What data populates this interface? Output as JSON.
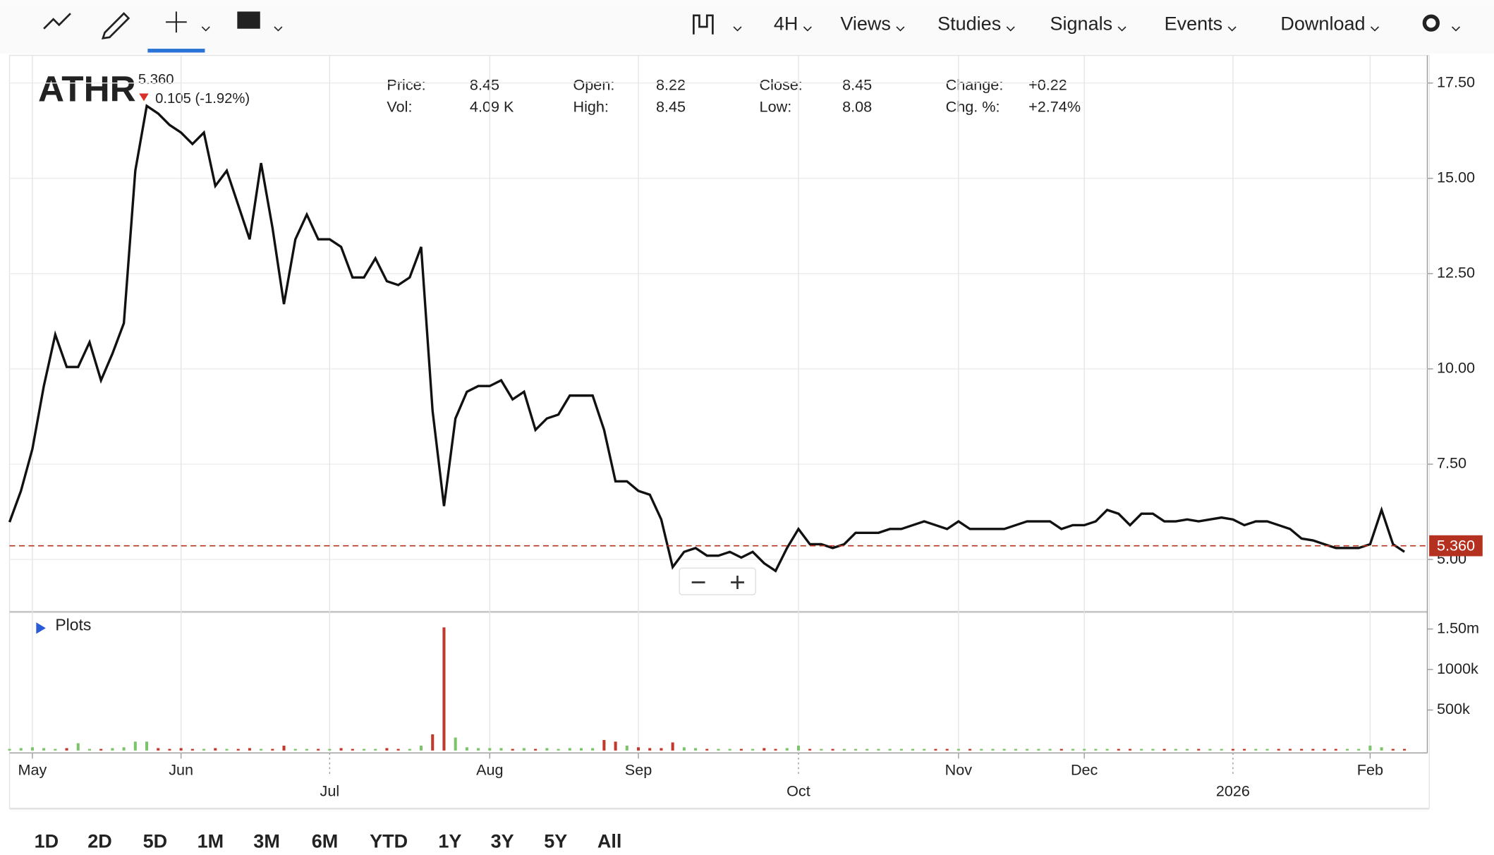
{
  "toolbar": {
    "items": [
      "4H",
      "Views",
      "Studies",
      "Signals",
      "Events",
      "Download"
    ]
  },
  "header": {
    "ticker": "ATHR",
    "last": "5.360",
    "change": "0.105 (-1.92%)",
    "stats": [
      {
        "label": "Price:",
        "value": "8.45"
      },
      {
        "label": "Vol:",
        "value": "4.09 K"
      },
      {
        "label": "Open:",
        "value": "8.22"
      },
      {
        "label": "High:",
        "value": "8.45"
      },
      {
        "label": "Close:",
        "value": "8.45"
      },
      {
        "label": "Low:",
        "value": "8.08"
      },
      {
        "label": "Change:",
        "value": "+0.22"
      },
      {
        "label": "Chg. %:",
        "value": "+2.74%"
      }
    ]
  },
  "plots_label": "Plots",
  "ranges": [
    "1D",
    "2D",
    "5D",
    "1M",
    "3M",
    "6M",
    "YTD",
    "1Y",
    "3Y",
    "5Y",
    "All"
  ],
  "chart_data": [
    {
      "type": "line",
      "color": "#111111",
      "grid": true,
      "categories": [
        null,
        null,
        "May",
        null,
        null,
        null,
        null,
        null,
        null,
        null,
        null,
        null,
        null,
        null,
        null,
        "Jun",
        null,
        null,
        null,
        null,
        null,
        null,
        null,
        null,
        null,
        null,
        null,
        null,
        "Jul",
        null,
        null,
        null,
        null,
        null,
        null,
        null,
        null,
        null,
        null,
        null,
        null,
        null,
        "Aug",
        null,
        null,
        null,
        null,
        null,
        null,
        null,
        null,
        null,
        null,
        null,
        null,
        "Sep",
        null,
        null,
        null,
        null,
        null,
        null,
        null,
        null,
        null,
        null,
        null,
        null,
        null,
        "Oct",
        null,
        null,
        null,
        null,
        null,
        null,
        null,
        null,
        null,
        null,
        null,
        null,
        null,
        "Nov",
        null,
        null,
        null,
        null,
        null,
        null,
        null,
        null,
        null,
        null,
        "Dec",
        null,
        null,
        null,
        null,
        null,
        null,
        null,
        null,
        null,
        null,
        null,
        null,
        "2026",
        null,
        null,
        null,
        null,
        null,
        null,
        null,
        null,
        null,
        null,
        null,
        "Feb",
        null,
        null,
        null
      ],
      "values": [
        5.98,
        6.8,
        7.9,
        9.55,
        10.9,
        10.05,
        10.05,
        10.7,
        9.7,
        10.4,
        11.2,
        15.2,
        16.9,
        16.7,
        16.4,
        16.2,
        15.9,
        16.2,
        14.8,
        15.2,
        14.3,
        13.4,
        15.4,
        13.7,
        11.7,
        13.4,
        14.05,
        13.4,
        13.4,
        13.2,
        12.4,
        12.4,
        12.9,
        12.3,
        12.2,
        12.4,
        13.2,
        8.9,
        6.4,
        8.7,
        9.4,
        9.55,
        9.55,
        9.7,
        9.2,
        9.4,
        8.4,
        8.7,
        8.8,
        9.3,
        9.3,
        9.3,
        8.4,
        7.05,
        7.05,
        6.8,
        6.7,
        6.05,
        4.8,
        5.2,
        5.3,
        5.1,
        5.1,
        5.2,
        5.05,
        5.2,
        4.9,
        4.7,
        5.3,
        5.8,
        5.4,
        5.4,
        5.3,
        5.4,
        5.7,
        5.7,
        5.7,
        5.8,
        5.8,
        5.9,
        6.0,
        5.9,
        5.8,
        6.0,
        5.8,
        5.8,
        5.8,
        5.8,
        5.9,
        6.0,
        6.0,
        6.0,
        5.8,
        5.9,
        5.9,
        6.0,
        6.3,
        6.2,
        5.9,
        6.2,
        6.2,
        6.0,
        6.0,
        6.05,
        6.0,
        6.05,
        6.1,
        6.05,
        5.9,
        6.0,
        6.0,
        5.9,
        5.8,
        5.55,
        5.5,
        5.4,
        5.3,
        5.3,
        5.3,
        5.4,
        6.3,
        5.4,
        5.2
      ],
      "ylim": [
        3.625,
        18.225
      ],
      "yticks": [
        {
          "value": 5,
          "label": "5.00"
        },
        {
          "value": 7.5,
          "label": "7.50"
        },
        {
          "value": 10,
          "label": "10.00"
        },
        {
          "value": 12.5,
          "label": "12.50"
        },
        {
          "value": 15,
          "label": "15.00"
        },
        {
          "value": 17.5,
          "label": "17.50"
        }
      ],
      "last_price": {
        "value": 5.36,
        "label": "5.360",
        "color": "#b5311f"
      }
    },
    {
      "type": "bar",
      "up_color": "#7cc46a",
      "down_color": "#c0392b",
      "values": [
        20000,
        30000,
        40000,
        30000,
        20000,
        30000,
        90000,
        20000,
        20000,
        30000,
        40000,
        110000,
        110000,
        30000,
        20000,
        30000,
        20000,
        20000,
        30000,
        20000,
        20000,
        30000,
        20000,
        20000,
        60000,
        20000,
        20000,
        20000,
        20000,
        30000,
        20000,
        20000,
        20000,
        30000,
        20000,
        20000,
        60000,
        200000,
        1520000,
        160000,
        40000,
        30000,
        30000,
        30000,
        20000,
        30000,
        20000,
        30000,
        20000,
        30000,
        30000,
        30000,
        130000,
        110000,
        60000,
        40000,
        30000,
        30000,
        100000,
        40000,
        30000,
        20000,
        20000,
        20000,
        20000,
        20000,
        30000,
        20000,
        30000,
        60000,
        20000,
        20000,
        20000,
        20000,
        20000,
        20000,
        20000,
        20000,
        20000,
        20000,
        20000,
        20000,
        20000,
        20000,
        20000,
        20000,
        20000,
        20000,
        20000,
        20000,
        20000,
        20000,
        20000,
        20000,
        20000,
        20000,
        20000,
        20000,
        20000,
        20000,
        20000,
        20000,
        20000,
        20000,
        20000,
        20000,
        20000,
        20000,
        20000,
        20000,
        20000,
        20000,
        20000,
        20000,
        20000,
        20000,
        20000,
        20000,
        20000,
        60000,
        40000,
        20000,
        20000
      ],
      "ylim": [
        0,
        1676000
      ],
      "yticks": [
        {
          "value": 500000,
          "label": "500k"
        },
        {
          "value": 1000000,
          "label": "1000k"
        },
        {
          "value": 1500000,
          "label": "1.50m"
        }
      ]
    }
  ]
}
